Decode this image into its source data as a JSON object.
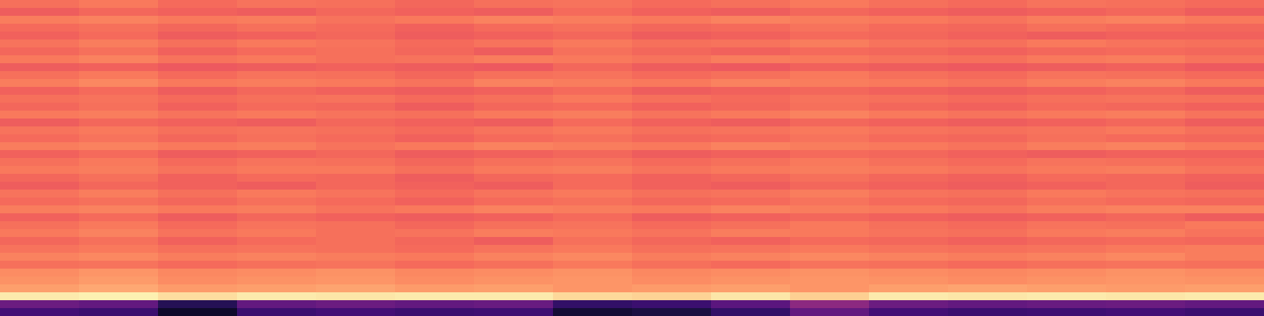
{
  "chart_data": {
    "type": "heatmap",
    "color": "magma",
    "tick_labels": false,
    "clim": [
      0,
      1
    ],
    "cells": [
      [
        0.7,
        0.72,
        0.69,
        0.71,
        0.7,
        0.68,
        0.7,
        0.71,
        0.69,
        0.7,
        0.72,
        0.7,
        0.69,
        0.71,
        0.7,
        0.69
      ],
      [
        0.66,
        0.68,
        0.67,
        0.66,
        0.68,
        0.67,
        0.66,
        0.69,
        0.67,
        0.66,
        0.68,
        0.67,
        0.66,
        0.67,
        0.68,
        0.66
      ],
      [
        0.73,
        0.74,
        0.72,
        0.73,
        0.71,
        0.72,
        0.74,
        0.73,
        0.72,
        0.74,
        0.73,
        0.72,
        0.71,
        0.73,
        0.74,
        0.72
      ],
      [
        0.69,
        0.7,
        0.68,
        0.7,
        0.69,
        0.67,
        0.69,
        0.7,
        0.68,
        0.69,
        0.71,
        0.69,
        0.68,
        0.7,
        0.69,
        0.68
      ],
      [
        0.67,
        0.69,
        0.66,
        0.67,
        0.68,
        0.66,
        0.67,
        0.68,
        0.66,
        0.67,
        0.69,
        0.68,
        0.67,
        0.66,
        0.67,
        0.67
      ],
      [
        0.71,
        0.73,
        0.7,
        0.72,
        0.71,
        0.69,
        0.71,
        0.72,
        0.7,
        0.71,
        0.73,
        0.71,
        0.7,
        0.72,
        0.71,
        0.7
      ],
      [
        0.68,
        0.7,
        0.67,
        0.69,
        0.7,
        0.68,
        0.66,
        0.7,
        0.68,
        0.67,
        0.69,
        0.68,
        0.67,
        0.68,
        0.69,
        0.68
      ],
      [
        0.72,
        0.74,
        0.71,
        0.72,
        0.7,
        0.71,
        0.73,
        0.72,
        0.71,
        0.73,
        0.72,
        0.71,
        0.7,
        0.72,
        0.73,
        0.71
      ],
      [
        0.66,
        0.67,
        0.65,
        0.66,
        0.67,
        0.66,
        0.65,
        0.68,
        0.66,
        0.65,
        0.67,
        0.66,
        0.65,
        0.66,
        0.67,
        0.65
      ],
      [
        0.7,
        0.72,
        0.69,
        0.71,
        0.7,
        0.68,
        0.7,
        0.71,
        0.69,
        0.7,
        0.72,
        0.7,
        0.69,
        0.71,
        0.7,
        0.69
      ],
      [
        0.73,
        0.75,
        0.72,
        0.73,
        0.72,
        0.71,
        0.74,
        0.73,
        0.72,
        0.74,
        0.73,
        0.72,
        0.71,
        0.73,
        0.74,
        0.72
      ],
      [
        0.67,
        0.69,
        0.66,
        0.68,
        0.67,
        0.66,
        0.67,
        0.69,
        0.66,
        0.67,
        0.68,
        0.67,
        0.66,
        0.67,
        0.68,
        0.66
      ],
      [
        0.7,
        0.71,
        0.69,
        0.7,
        0.71,
        0.69,
        0.7,
        0.72,
        0.7,
        0.69,
        0.71,
        0.7,
        0.69,
        0.7,
        0.71,
        0.7
      ],
      [
        0.68,
        0.7,
        0.67,
        0.69,
        0.68,
        0.66,
        0.68,
        0.69,
        0.67,
        0.68,
        0.7,
        0.68,
        0.67,
        0.69,
        0.68,
        0.67
      ],
      [
        0.72,
        0.73,
        0.71,
        0.72,
        0.71,
        0.7,
        0.72,
        0.73,
        0.71,
        0.72,
        0.74,
        0.72,
        0.71,
        0.72,
        0.73,
        0.71
      ],
      [
        0.66,
        0.68,
        0.67,
        0.66,
        0.68,
        0.67,
        0.66,
        0.69,
        0.67,
        0.66,
        0.68,
        0.67,
        0.66,
        0.67,
        0.68,
        0.66
      ],
      [
        0.71,
        0.72,
        0.7,
        0.71,
        0.7,
        0.69,
        0.71,
        0.72,
        0.7,
        0.71,
        0.72,
        0.71,
        0.7,
        0.71,
        0.72,
        0.7
      ],
      [
        0.69,
        0.71,
        0.68,
        0.7,
        0.69,
        0.67,
        0.69,
        0.7,
        0.68,
        0.69,
        0.71,
        0.69,
        0.68,
        0.7,
        0.69,
        0.68
      ],
      [
        0.73,
        0.74,
        0.72,
        0.73,
        0.71,
        0.72,
        0.74,
        0.73,
        0.72,
        0.74,
        0.73,
        0.72,
        0.71,
        0.73,
        0.74,
        0.72
      ],
      [
        0.67,
        0.69,
        0.66,
        0.67,
        0.68,
        0.66,
        0.67,
        0.68,
        0.66,
        0.67,
        0.69,
        0.68,
        0.67,
        0.66,
        0.67,
        0.67
      ],
      [
        0.7,
        0.72,
        0.69,
        0.71,
        0.7,
        0.68,
        0.7,
        0.71,
        0.69,
        0.7,
        0.72,
        0.7,
        0.69,
        0.71,
        0.7,
        0.69
      ],
      [
        0.72,
        0.73,
        0.71,
        0.72,
        0.72,
        0.7,
        0.72,
        0.73,
        0.71,
        0.72,
        0.73,
        0.72,
        0.71,
        0.72,
        0.73,
        0.71
      ],
      [
        0.68,
        0.7,
        0.67,
        0.69,
        0.68,
        0.66,
        0.68,
        0.69,
        0.67,
        0.68,
        0.7,
        0.68,
        0.67,
        0.69,
        0.68,
        0.67
      ],
      [
        0.66,
        0.68,
        0.67,
        0.66,
        0.68,
        0.67,
        0.66,
        0.69,
        0.67,
        0.66,
        0.68,
        0.67,
        0.66,
        0.67,
        0.68,
        0.66
      ],
      [
        0.71,
        0.73,
        0.7,
        0.72,
        0.71,
        0.69,
        0.71,
        0.72,
        0.7,
        0.71,
        0.73,
        0.71,
        0.7,
        0.72,
        0.71,
        0.7
      ],
      [
        0.69,
        0.7,
        0.68,
        0.7,
        0.69,
        0.67,
        0.69,
        0.7,
        0.68,
        0.69,
        0.71,
        0.69,
        0.68,
        0.7,
        0.69,
        0.68
      ],
      [
        0.73,
        0.74,
        0.72,
        0.73,
        0.71,
        0.72,
        0.74,
        0.73,
        0.72,
        0.74,
        0.73,
        0.72,
        0.71,
        0.73,
        0.74,
        0.74
      ],
      [
        0.67,
        0.69,
        0.66,
        0.68,
        0.67,
        0.66,
        0.67,
        0.69,
        0.66,
        0.67,
        0.68,
        0.67,
        0.66,
        0.67,
        0.68,
        0.66
      ],
      [
        0.7,
        0.72,
        0.69,
        0.71,
        0.7,
        0.68,
        0.7,
        0.71,
        0.69,
        0.7,
        0.72,
        0.7,
        0.69,
        0.71,
        0.7,
        0.72
      ],
      [
        0.72,
        0.74,
        0.71,
        0.72,
        0.7,
        0.71,
        0.73,
        0.72,
        0.71,
        0.73,
        0.72,
        0.71,
        0.7,
        0.72,
        0.73,
        0.71
      ],
      [
        0.68,
        0.7,
        0.67,
        0.69,
        0.7,
        0.68,
        0.66,
        0.7,
        0.68,
        0.67,
        0.69,
        0.68,
        0.67,
        0.68,
        0.69,
        0.68
      ],
      [
        0.71,
        0.72,
        0.7,
        0.71,
        0.7,
        0.69,
        0.71,
        0.72,
        0.7,
        0.71,
        0.72,
        0.71,
        0.7,
        0.71,
        0.72,
        0.73
      ],
      [
        0.74,
        0.75,
        0.73,
        0.74,
        0.73,
        0.72,
        0.74,
        0.75,
        0.73,
        0.74,
        0.75,
        0.74,
        0.73,
        0.74,
        0.75,
        0.73
      ],
      [
        0.7,
        0.71,
        0.69,
        0.7,
        0.71,
        0.69,
        0.7,
        0.72,
        0.7,
        0.69,
        0.71,
        0.7,
        0.69,
        0.7,
        0.71,
        0.7
      ],
      [
        0.76,
        0.78,
        0.75,
        0.76,
        0.77,
        0.75,
        0.76,
        0.77,
        0.75,
        0.76,
        0.77,
        0.76,
        0.75,
        0.76,
        0.77,
        0.76
      ],
      [
        0.77,
        0.79,
        0.76,
        0.77,
        0.78,
        0.76,
        0.77,
        0.78,
        0.76,
        0.77,
        0.78,
        0.77,
        0.76,
        0.77,
        0.78,
        0.77
      ],
      [
        0.8,
        0.82,
        0.79,
        0.8,
        0.81,
        0.79,
        0.8,
        0.78,
        0.79,
        0.8,
        0.78,
        0.8,
        0.81,
        0.8,
        0.79,
        0.8
      ],
      [
        0.96,
        0.97,
        0.93,
        0.96,
        0.95,
        0.96,
        0.96,
        0.92,
        0.91,
        0.95,
        0.9,
        0.96,
        0.95,
        0.96,
        0.95,
        0.96
      ],
      [
        0.32,
        0.3,
        0.15,
        0.3,
        0.32,
        0.3,
        0.31,
        0.18,
        0.2,
        0.28,
        0.4,
        0.32,
        0.3,
        0.31,
        0.32,
        0.3
      ],
      [
        0.22,
        0.2,
        0.08,
        0.2,
        0.22,
        0.2,
        0.21,
        0.1,
        0.12,
        0.18,
        0.3,
        0.22,
        0.2,
        0.21,
        0.22,
        0.2
      ]
    ]
  }
}
